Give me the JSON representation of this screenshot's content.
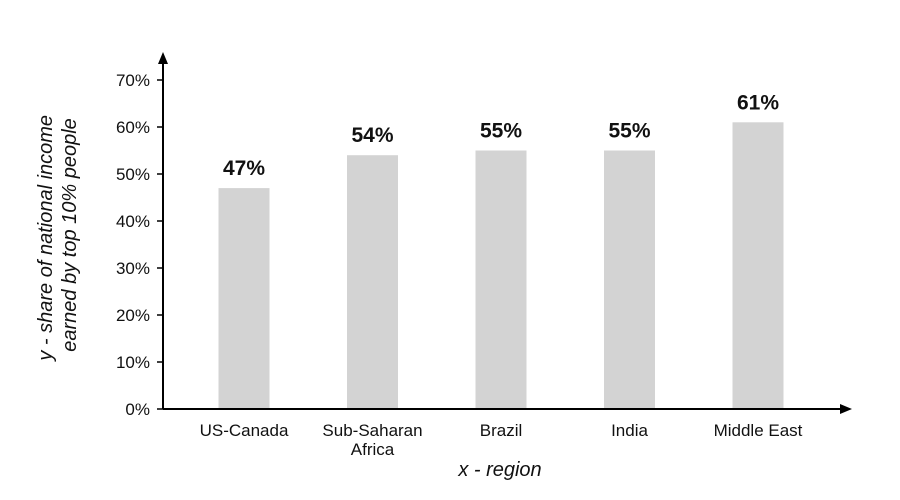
{
  "chart_data": {
    "type": "bar",
    "categories": [
      "US-Canada",
      "Sub-Saharan Africa",
      "Brazil",
      "India",
      "Middle East"
    ],
    "category_lines": [
      [
        "US-Canada"
      ],
      [
        "Sub-Saharan",
        "Africa"
      ],
      [
        "Brazil"
      ],
      [
        "India"
      ],
      [
        "Middle East"
      ]
    ],
    "values": [
      47,
      54,
      55,
      55,
      61
    ],
    "data_labels": [
      "47%",
      "54%",
      "55%",
      "55%",
      "61%"
    ],
    "title": "",
    "xlabel": "x - region",
    "ylabel_lines": [
      "y - share of national income",
      "earned by top 10% people"
    ],
    "yticks": [
      0,
      10,
      20,
      30,
      40,
      50,
      60,
      70
    ],
    "ytick_labels": [
      "0%",
      "10%",
      "20%",
      "30%",
      "40%",
      "50%",
      "60%",
      "70%"
    ],
    "ylim": [
      0,
      70
    ],
    "grid": false,
    "legend": "none",
    "bar_color": "#d3d3d3",
    "axis_color": "#000000"
  }
}
